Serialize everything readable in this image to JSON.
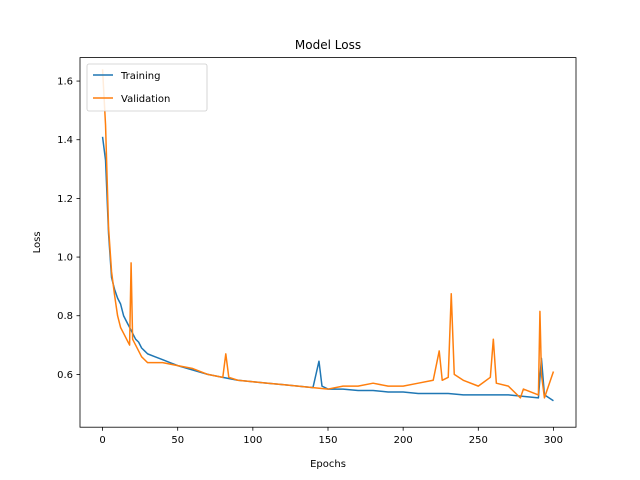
{
  "chart_data": {
    "type": "line",
    "title": "Model Loss",
    "xlabel": "Epochs",
    "ylabel": "Loss",
    "xlim": [
      -15,
      315
    ],
    "ylim": [
      0.42,
      1.68
    ],
    "xticks": [
      0,
      50,
      100,
      150,
      200,
      250,
      300
    ],
    "xtick_labels": [
      "0",
      "50",
      "100",
      "150",
      "200",
      "250",
      "300"
    ],
    "yticks": [
      0.6,
      0.8,
      1.0,
      1.2,
      1.4,
      1.6
    ],
    "ytick_labels": [
      "0.6",
      "0.8",
      "1.0",
      "1.2",
      "1.4",
      "1.6"
    ],
    "grid": false,
    "legend_position": "top-left",
    "series": [
      {
        "name": "Training",
        "color": "#1f77b4",
        "points": [
          [
            0,
            1.41
          ],
          [
            2,
            1.33
          ],
          [
            4,
            1.08
          ],
          [
            6,
            0.93
          ],
          [
            8,
            0.89
          ],
          [
            10,
            0.86
          ],
          [
            12,
            0.84
          ],
          [
            14,
            0.8
          ],
          [
            16,
            0.78
          ],
          [
            18,
            0.76
          ],
          [
            20,
            0.74
          ],
          [
            22,
            0.72
          ],
          [
            24,
            0.71
          ],
          [
            26,
            0.69
          ],
          [
            28,
            0.68
          ],
          [
            30,
            0.67
          ],
          [
            35,
            0.66
          ],
          [
            40,
            0.65
          ],
          [
            45,
            0.64
          ],
          [
            50,
            0.63
          ],
          [
            60,
            0.615
          ],
          [
            70,
            0.6
          ],
          [
            80,
            0.59
          ],
          [
            90,
            0.58
          ],
          [
            100,
            0.575
          ],
          [
            110,
            0.57
          ],
          [
            120,
            0.565
          ],
          [
            130,
            0.56
          ],
          [
            140,
            0.555
          ],
          [
            144,
            0.645
          ],
          [
            146,
            0.56
          ],
          [
            150,
            0.55
          ],
          [
            160,
            0.55
          ],
          [
            170,
            0.545
          ],
          [
            180,
            0.545
          ],
          [
            190,
            0.54
          ],
          [
            200,
            0.54
          ],
          [
            210,
            0.535
          ],
          [
            220,
            0.535
          ],
          [
            230,
            0.535
          ],
          [
            240,
            0.53
          ],
          [
            250,
            0.53
          ],
          [
            260,
            0.53
          ],
          [
            270,
            0.53
          ],
          [
            280,
            0.525
          ],
          [
            290,
            0.52
          ],
          [
            292,
            0.655
          ],
          [
            294,
            0.53
          ],
          [
            300,
            0.51
          ]
        ]
      },
      {
        "name": "Validation",
        "color": "#ff7f0e",
        "points": [
          [
            0,
            1.64
          ],
          [
            2,
            1.45
          ],
          [
            4,
            1.1
          ],
          [
            6,
            0.95
          ],
          [
            8,
            0.87
          ],
          [
            10,
            0.8
          ],
          [
            12,
            0.76
          ],
          [
            14,
            0.74
          ],
          [
            16,
            0.72
          ],
          [
            18,
            0.7
          ],
          [
            19,
            0.98
          ],
          [
            20,
            0.72
          ],
          [
            22,
            0.7
          ],
          [
            24,
            0.68
          ],
          [
            26,
            0.66
          ],
          [
            28,
            0.65
          ],
          [
            30,
            0.64
          ],
          [
            40,
            0.64
          ],
          [
            50,
            0.63
          ],
          [
            60,
            0.62
          ],
          [
            70,
            0.6
          ],
          [
            80,
            0.59
          ],
          [
            82,
            0.67
          ],
          [
            84,
            0.59
          ],
          [
            90,
            0.58
          ],
          [
            100,
            0.575
          ],
          [
            110,
            0.57
          ],
          [
            120,
            0.565
          ],
          [
            130,
            0.56
          ],
          [
            140,
            0.555
          ],
          [
            150,
            0.55
          ],
          [
            160,
            0.56
          ],
          [
            170,
            0.56
          ],
          [
            180,
            0.57
          ],
          [
            190,
            0.56
          ],
          [
            200,
            0.56
          ],
          [
            210,
            0.57
          ],
          [
            220,
            0.58
          ],
          [
            224,
            0.68
          ],
          [
            226,
            0.58
          ],
          [
            230,
            0.59
          ],
          [
            232,
            0.875
          ],
          [
            234,
            0.6
          ],
          [
            240,
            0.58
          ],
          [
            250,
            0.56
          ],
          [
            258,
            0.59
          ],
          [
            260,
            0.72
          ],
          [
            262,
            0.57
          ],
          [
            270,
            0.56
          ],
          [
            278,
            0.52
          ],
          [
            280,
            0.55
          ],
          [
            290,
            0.53
          ],
          [
            291,
            0.815
          ],
          [
            292,
            0.6
          ],
          [
            294,
            0.52
          ],
          [
            300,
            0.61
          ]
        ]
      }
    ]
  }
}
